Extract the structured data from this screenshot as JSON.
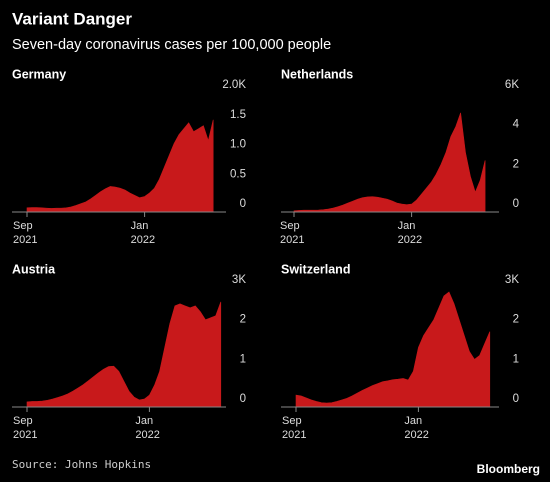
{
  "title": "Variant Danger",
  "subtitle": "Seven-day coronavirus cases per 100,000 people",
  "source": "Source: Johns Hopkins",
  "brand": "Bloomberg",
  "chart_data": [
    {
      "type": "area",
      "title": "Germany",
      "color": "#c8191b",
      "categories": [
        "Sep\n2021",
        null,
        null,
        null,
        null,
        null,
        null,
        null,
        null,
        null,
        null,
        null,
        null,
        null,
        null,
        null,
        null,
        null,
        null,
        null,
        null,
        null,
        null,
        null,
        "Jan\n2022",
        null,
        null,
        null,
        null,
        null,
        null,
        null,
        null,
        null,
        null,
        null,
        null,
        null,
        null
      ],
      "values": [
        70,
        75,
        75,
        70,
        65,
        60,
        65,
        65,
        70,
        85,
        110,
        140,
        170,
        220,
        280,
        340,
        390,
        430,
        420,
        400,
        370,
        320,
        280,
        240,
        260,
        320,
        400,
        550,
        750,
        950,
        1150,
        1300,
        1400,
        1500,
        1350,
        1400,
        1450,
        1200,
        1550
      ],
      "ylim": [
        0,
        2000
      ],
      "yticks": [
        0,
        {
          "value": 500,
          "label": "0.5"
        },
        {
          "value": 1000,
          "label": "1.0"
        },
        {
          "value": 1500,
          "label": "1.5"
        },
        {
          "value": 2000,
          "label": "2.0K"
        }
      ]
    },
    {
      "type": "area",
      "title": "Netherlands",
      "color": "#c8191b",
      "categories": [
        "Sep\n2021",
        null,
        null,
        null,
        null,
        null,
        null,
        null,
        null,
        null,
        null,
        null,
        null,
        null,
        null,
        null,
        null,
        null,
        null,
        null,
        null,
        null,
        null,
        null,
        "Jan\n2022",
        null,
        null,
        null,
        null,
        null,
        null,
        null,
        null,
        null,
        null,
        null,
        null,
        null,
        null,
        null
      ],
      "values": [
        60,
        80,
        90,
        90,
        90,
        100,
        120,
        150,
        200,
        270,
        350,
        450,
        550,
        650,
        720,
        760,
        770,
        750,
        700,
        650,
        560,
        450,
        400,
        370,
        400,
        600,
        900,
        1200,
        1500,
        1900,
        2400,
        3000,
        3800,
        4300,
        5000,
        3000,
        1800,
        1000,
        1600,
        2600
      ],
      "ylim": [
        0,
        6000
      ],
      "yticks": [
        0,
        {
          "value": 2000,
          "label": "2"
        },
        {
          "value": 4000,
          "label": "4"
        },
        {
          "value": 6000,
          "label": "6K"
        }
      ]
    },
    {
      "type": "area",
      "title": "Austria",
      "color": "#c8191b",
      "categories": [
        "Sep\n2021",
        null,
        null,
        null,
        null,
        null,
        null,
        null,
        null,
        null,
        null,
        null,
        null,
        null,
        null,
        null,
        null,
        null,
        null,
        null,
        null,
        null,
        null,
        null,
        "Jan\n2022",
        null,
        null,
        null,
        null,
        null,
        null,
        null,
        null,
        null,
        null,
        null,
        null,
        null,
        null
      ],
      "values": [
        130,
        140,
        140,
        150,
        170,
        200,
        240,
        280,
        330,
        400,
        480,
        560,
        660,
        760,
        860,
        950,
        1020,
        1030,
        900,
        650,
        400,
        250,
        180,
        200,
        300,
        550,
        900,
        1500,
        2100,
        2550,
        2600,
        2550,
        2500,
        2550,
        2400,
        2200,
        2250,
        2300,
        2650
      ],
      "ylim": [
        0,
        3000
      ],
      "yticks": [
        0,
        {
          "value": 1000,
          "label": "1"
        },
        {
          "value": 2000,
          "label": "2"
        },
        {
          "value": 3000,
          "label": "3K"
        }
      ]
    },
    {
      "type": "area",
      "title": "Switzerland",
      "color": "#c8191b",
      "categories": [
        "Sep\n2021",
        null,
        null,
        null,
        null,
        null,
        null,
        null,
        null,
        null,
        null,
        null,
        null,
        null,
        null,
        null,
        null,
        null,
        null,
        null,
        null,
        null,
        null,
        null,
        "Jan\n2022",
        null,
        null,
        null,
        null,
        null,
        null,
        null,
        null,
        null,
        null,
        null,
        null,
        null,
        null
      ],
      "values": [
        300,
        280,
        230,
        180,
        140,
        110,
        100,
        110,
        140,
        180,
        220,
        280,
        350,
        420,
        480,
        540,
        590,
        640,
        660,
        690,
        700,
        720,
        680,
        900,
        1500,
        1800,
        2000,
        2200,
        2500,
        2800,
        2900,
        2600,
        2200,
        1800,
        1400,
        1200,
        1300,
        1600,
        1900
      ],
      "ylim": [
        0,
        3000
      ],
      "yticks": [
        0,
        {
          "value": 1000,
          "label": "1"
        },
        {
          "value": 2000,
          "label": "2"
        },
        {
          "value": 3000,
          "label": "3K"
        }
      ]
    }
  ]
}
